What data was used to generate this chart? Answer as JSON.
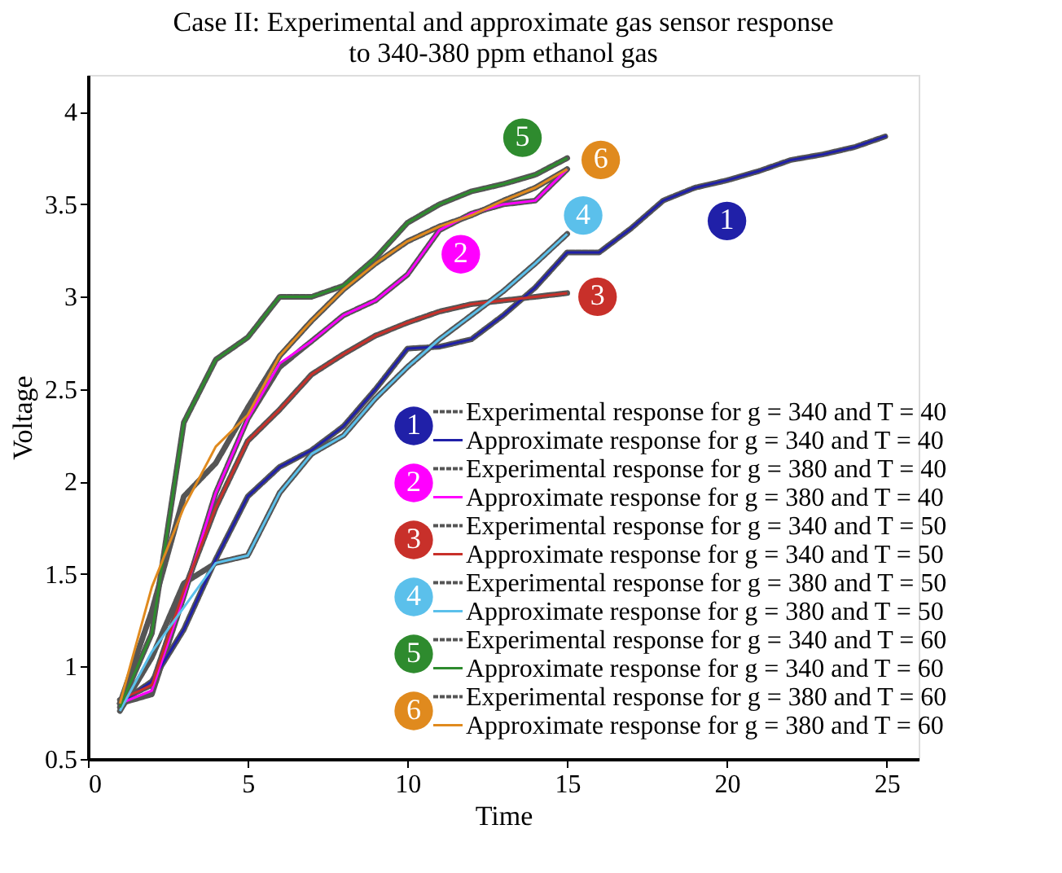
{
  "chart_data": {
    "type": "line",
    "title": "Case II: Experimental and approximate gas sensor response\nto 340-380 ppm ethanol gas",
    "xlabel": "Time",
    "ylabel": "Voltage",
    "x": [
      1,
      2,
      3,
      4,
      5,
      6,
      7,
      8,
      9,
      10,
      11,
      12,
      13,
      14,
      15
    ],
    "series": [
      {
        "name": "Experimental response for g = 340 and T = 40",
        "color": "#555555",
        "line_style": "dashed",
        "x": [
          1,
          2,
          3,
          4,
          5,
          6,
          7,
          8,
          9,
          10,
          11,
          12,
          13,
          14,
          15,
          16,
          17,
          18,
          19,
          20,
          21,
          22,
          23,
          24,
          25
        ],
        "values": [
          0.8,
          0.92,
          1.2,
          1.58,
          1.92,
          2.08,
          2.17,
          2.3,
          2.5,
          2.72,
          2.73,
          2.77,
          2.9,
          3.05,
          3.24,
          3.24,
          3.37,
          3.52,
          3.59,
          3.63,
          3.68,
          3.74,
          3.77,
          3.81,
          3.87
        ]
      },
      {
        "name": "Approximate response for g = 340 and T = 40",
        "color": "#2020a8",
        "line_style": "solid",
        "x": [
          1,
          2,
          3,
          4,
          5,
          6,
          7,
          8,
          9,
          10,
          11,
          12,
          13,
          14,
          15,
          16,
          17,
          18,
          19,
          20,
          21,
          22,
          23,
          24,
          25
        ],
        "values": [
          0.8,
          0.92,
          1.2,
          1.58,
          1.92,
          2.08,
          2.17,
          2.3,
          2.5,
          2.72,
          2.73,
          2.77,
          2.9,
          3.05,
          3.24,
          3.24,
          3.37,
          3.52,
          3.59,
          3.63,
          3.68,
          3.74,
          3.77,
          3.81,
          3.87
        ]
      },
      {
        "name": "Experimental response for g = 380 and T = 40",
        "color": "#555555",
        "line_style": "dashed",
        "values": [
          0.8,
          0.85,
          1.38,
          1.94,
          2.34,
          2.62,
          2.76,
          2.9,
          2.98,
          3.12,
          3.36,
          3.45,
          3.5,
          3.52,
          3.69
        ]
      },
      {
        "name": "Approximate response for g = 380 and T = 40",
        "color": "#ff00ff",
        "line_style": "solid",
        "values": [
          0.8,
          0.87,
          1.38,
          1.94,
          2.34,
          2.64,
          2.76,
          2.9,
          2.98,
          3.12,
          3.36,
          3.45,
          3.5,
          3.52,
          3.69
        ]
      },
      {
        "name": "Experimental response for g = 340 and T = 50",
        "color": "#555555",
        "line_style": "dashed",
        "values": [
          0.82,
          0.9,
          1.41,
          1.86,
          2.22,
          2.39,
          2.58,
          2.69,
          2.79,
          2.86,
          2.92,
          2.96,
          2.98,
          3.0,
          3.02
        ]
      },
      {
        "name": "Approximate response for g = 340 and T = 50",
        "color": "#c8302a",
        "line_style": "solid",
        "values": [
          0.82,
          0.9,
          1.41,
          1.86,
          2.22,
          2.39,
          2.58,
          2.69,
          2.79,
          2.86,
          2.92,
          2.96,
          2.98,
          3.0,
          3.02
        ]
      },
      {
        "name": "Experimental response for g = 380 and T = 50",
        "color": "#555555",
        "line_style": "dashed",
        "values": [
          0.76,
          1.05,
          1.45,
          1.56,
          1.6,
          1.94,
          2.15,
          2.25,
          2.45,
          2.62,
          2.77,
          2.9,
          3.03,
          3.18,
          3.34
        ]
      },
      {
        "name": "Approximate response for g = 380 and T = 50",
        "color": "#5bc0eb",
        "line_style": "solid",
        "values": [
          0.76,
          1.08,
          1.32,
          1.56,
          1.6,
          1.94,
          2.15,
          2.25,
          2.45,
          2.62,
          2.77,
          2.9,
          3.03,
          3.18,
          3.34
        ]
      },
      {
        "name": "Experimental response for g = 340 and T = 60",
        "color": "#555555",
        "line_style": "dashed",
        "values": [
          0.78,
          1.18,
          2.32,
          2.66,
          2.78,
          3.0,
          3.0,
          3.06,
          3.21,
          3.4,
          3.5,
          3.57,
          3.61,
          3.66,
          3.75
        ]
      },
      {
        "name": "Approximate response for g = 340 and T = 60",
        "color": "#2e8b2e",
        "line_style": "solid",
        "values": [
          0.78,
          1.18,
          2.32,
          2.66,
          2.78,
          3.0,
          3.0,
          3.06,
          3.21,
          3.4,
          3.5,
          3.57,
          3.61,
          3.66,
          3.75
        ]
      },
      {
        "name": "Experimental response for g = 380 and T = 60",
        "color": "#555555",
        "line_style": "dashed",
        "values": [
          0.8,
          1.3,
          1.92,
          2.1,
          2.4,
          2.68,
          2.87,
          3.04,
          3.18,
          3.3,
          3.38,
          3.44,
          3.52,
          3.59,
          3.69
        ]
      },
      {
        "name": "Approximate response for g = 380 and T = 60",
        "color": "#e08a1e",
        "line_style": "solid",
        "values": [
          0.8,
          1.43,
          1.86,
          2.19,
          2.36,
          2.68,
          2.87,
          3.04,
          3.18,
          3.3,
          3.38,
          3.44,
          3.52,
          3.59,
          3.69
        ]
      }
    ],
    "annotations": [
      {
        "text": "1",
        "x": 20,
        "y": 3.41
      },
      {
        "text": "2",
        "x": 11.67,
        "y": 3.23
      },
      {
        "text": "3",
        "x": 15.95,
        "y": 3.0
      },
      {
        "text": "4",
        "x": 15.5,
        "y": 3.44
      },
      {
        "text": "5",
        "x": 13.6,
        "y": 3.86
      },
      {
        "text": "6",
        "x": 16.05,
        "y": 3.74
      }
    ],
    "xlim": [
      0,
      26
    ],
    "ylim": [
      0.5,
      4.2
    ],
    "xticks": [
      0,
      5,
      10,
      15,
      20,
      25
    ],
    "yticks": [
      0.5,
      1,
      1.5,
      2,
      2.5,
      3,
      3.5,
      4
    ],
    "grid": false,
    "legend": "bottom right",
    "marker": "none"
  }
}
